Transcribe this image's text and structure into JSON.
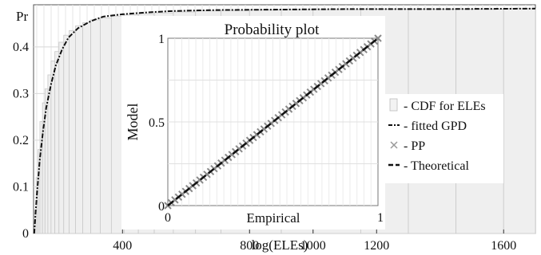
{
  "chart_data": [
    {
      "type": "area",
      "role": "main",
      "ylabel": "Pr",
      "xlabel": "log(ELEs)",
      "y_ticks": [
        "0",
        "0.1",
        "0.2",
        "0.3",
        "0.4"
      ],
      "x_ticks": [
        {
          "value": 400,
          "label": "400"
        },
        {
          "value": 800,
          "label": "800"
        },
        {
          "value": 1000,
          "label": "1000"
        },
        {
          "value": 1200,
          "label": "1200"
        },
        {
          "value": 1600,
          "label": "1600"
        }
      ],
      "xlim": [
        120,
        1700
      ],
      "ylim": [
        0,
        0.48
      ],
      "grid": true,
      "legend_position": "right",
      "legend": [
        {
          "key": "cdf",
          "label": "- CDF for ELEs",
          "symbol": "bar"
        },
        {
          "key": "fit",
          "label": "- fitted GPD",
          "symbol": "dashdot"
        },
        {
          "key": "pp",
          "label": "- PP",
          "symbol": "x"
        },
        {
          "key": "theory",
          "label": "- Theoretical",
          "symbol": "dash"
        }
      ],
      "series": [
        {
          "key": "fit",
          "x": [
            122,
            130,
            140,
            150,
            160,
            175,
            190,
            210,
            230,
            260,
            300,
            340,
            400,
            480,
            560,
            700,
            900,
            1100,
            1400,
            1700
          ],
          "y": [
            0.0,
            0.08,
            0.16,
            0.22,
            0.27,
            0.32,
            0.36,
            0.395,
            0.42,
            0.44,
            0.455,
            0.465,
            0.47,
            0.474,
            0.477,
            0.479,
            0.48,
            0.481,
            0.481,
            0.482
          ]
        },
        {
          "key": "cdf",
          "x": [
            122,
            128,
            134,
            140,
            148,
            156,
            165,
            175,
            187,
            200,
            215,
            232,
            252,
            275,
            300,
            330,
            365,
            405,
            450,
            500,
            560,
            630,
            710,
            800,
            900,
            1000,
            1150,
            1300,
            1450,
            1600
          ],
          "y": [
            0.05,
            0.12,
            0.18,
            0.24,
            0.28,
            0.31,
            0.34,
            0.37,
            0.39,
            0.41,
            0.425,
            0.435,
            0.445,
            0.452,
            0.458,
            0.462,
            0.466,
            0.469,
            0.471,
            0.473,
            0.475,
            0.477,
            0.478,
            0.479,
            0.48,
            0.48,
            0.481,
            0.481,
            0.481,
            0.482
          ]
        }
      ]
    },
    {
      "type": "scatter",
      "role": "inset",
      "title": "Probability plot",
      "xlabel": "Empirical",
      "ylabel": "Model",
      "xlim": [
        0,
        1
      ],
      "ylim": [
        0,
        1
      ],
      "x_tick_labels": [
        "0",
        "1"
      ],
      "y_tick_labels": [
        "0",
        "0.5",
        "1"
      ],
      "grid": true,
      "pp_count": 60,
      "theoretical": [
        [
          0,
          0
        ],
        [
          1,
          1
        ]
      ]
    }
  ]
}
